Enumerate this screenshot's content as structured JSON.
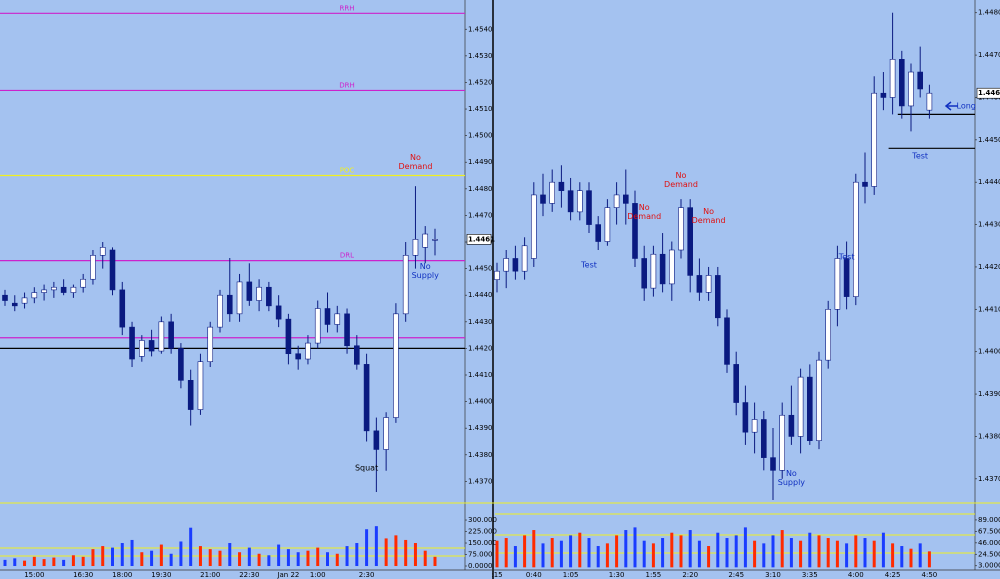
{
  "chart_data": [
    {
      "type": "candlestick",
      "categories": [
        null,
        null,
        null,
        "15:00",
        null,
        null,
        null,
        null,
        "16:30",
        null,
        null,
        null,
        "18:00",
        null,
        null,
        null,
        "19:30",
        null,
        null,
        null,
        null,
        "21:00",
        null,
        null,
        null,
        "22:30",
        null,
        null,
        null,
        "Jan 22",
        null,
        null,
        "1:00",
        null,
        null,
        null,
        null,
        "2:30",
        null,
        null,
        null,
        null,
        null,
        null,
        null
      ],
      "ohlc": [
        [
          1.444,
          1.4442,
          1.4436,
          1.4438
        ],
        [
          1.4437,
          1.444,
          1.4434,
          1.4436
        ],
        [
          1.4437,
          1.4441,
          1.4435,
          1.4439
        ],
        [
          1.4439,
          1.4443,
          1.4437,
          1.4441
        ],
        [
          1.4441,
          1.4444,
          1.4438,
          1.4442
        ],
        [
          1.4442,
          1.4445,
          1.4439,
          1.4443
        ],
        [
          1.4443,
          1.4446,
          1.444,
          1.4441
        ],
        [
          1.4441,
          1.4444,
          1.4439,
          1.4443
        ],
        [
          1.4443,
          1.4448,
          1.4441,
          1.4446
        ],
        [
          1.4446,
          1.4457,
          1.4444,
          1.4455
        ],
        [
          1.4455,
          1.446,
          1.445,
          1.4458
        ],
        [
          1.4457,
          1.4458,
          1.444,
          1.4442
        ],
        [
          1.4442,
          1.4445,
          1.4425,
          1.4428
        ],
        [
          1.4428,
          1.443,
          1.4413,
          1.4416
        ],
        [
          1.4417,
          1.4425,
          1.4415,
          1.4423
        ],
        [
          1.4423,
          1.4427,
          1.4417,
          1.4419
        ],
        [
          1.4419,
          1.4432,
          1.4418,
          1.443
        ],
        [
          1.443,
          1.4433,
          1.4418,
          1.442
        ],
        [
          1.442,
          1.4422,
          1.4405,
          1.4408
        ],
        [
          1.4408,
          1.4412,
          1.4391,
          1.4397
        ],
        [
          1.4397,
          1.4418,
          1.4395,
          1.4415
        ],
        [
          1.4415,
          1.443,
          1.4413,
          1.4428
        ],
        [
          1.4428,
          1.4442,
          1.4426,
          1.444
        ],
        [
          1.444,
          1.4454,
          1.443,
          1.4433
        ],
        [
          1.4433,
          1.4448,
          1.443,
          1.4445
        ],
        [
          1.4445,
          1.4452,
          1.4436,
          1.4438
        ],
        [
          1.4438,
          1.4446,
          1.4434,
          1.4443
        ],
        [
          1.4443,
          1.4445,
          1.4434,
          1.4436
        ],
        [
          1.4436,
          1.444,
          1.4428,
          1.4431
        ],
        [
          1.4431,
          1.4433,
          1.4414,
          1.4418
        ],
        [
          1.4418,
          1.4421,
          1.4412,
          1.4416
        ],
        [
          1.4416,
          1.4425,
          1.4414,
          1.4422
        ],
        [
          1.4422,
          1.4438,
          1.442,
          1.4435
        ],
        [
          1.4435,
          1.4441,
          1.4426,
          1.4429
        ],
        [
          1.4429,
          1.4436,
          1.4426,
          1.4433
        ],
        [
          1.4433,
          1.4435,
          1.4418,
          1.4421
        ],
        [
          1.4421,
          1.4425,
          1.4412,
          1.4414
        ],
        [
          1.4414,
          1.4418,
          1.4385,
          1.4389
        ],
        [
          1.4389,
          1.4394,
          1.4366,
          1.4382
        ],
        [
          1.4382,
          1.4396,
          1.4374,
          1.4394
        ],
        [
          1.4394,
          1.4437,
          1.4392,
          1.4433
        ],
        [
          1.4433,
          1.446,
          1.443,
          1.4455
        ],
        [
          1.4455,
          1.4481,
          1.445,
          1.4461
        ],
        [
          1.4458,
          1.4466,
          1.4452,
          1.4463
        ],
        [
          1.4461,
          1.4465,
          1.4455,
          1.4461
        ]
      ],
      "up_color": "#ffffff",
      "down_color": "#0a1a80",
      "ylim": [
        1.4363,
        1.4551
      ],
      "yticks": [
        {
          "value": 1.437,
          "label": "1.4370"
        },
        {
          "value": 1.438,
          "label": "1.4380"
        },
        {
          "value": 1.439,
          "label": "1.4390"
        },
        {
          "value": 1.44,
          "label": "1.4400"
        },
        {
          "value": 1.441,
          "label": "1.4410"
        },
        {
          "value": 1.442,
          "label": "1.4420"
        },
        {
          "value": 1.443,
          "label": "1.4430"
        },
        {
          "value": 1.444,
          "label": "1.4440"
        },
        {
          "value": 1.445,
          "label": "1.4450"
        },
        {
          "value": 1.446,
          "label": "1.4460"
        },
        {
          "value": 1.447,
          "label": "1.4470"
        },
        {
          "value": 1.448,
          "label": "1.4480"
        },
        {
          "value": 1.449,
          "label": "1.4490"
        },
        {
          "value": 1.45,
          "label": "1.4500"
        },
        {
          "value": 1.451,
          "label": "1.4510"
        },
        {
          "value": 1.452,
          "label": "1.4520"
        },
        {
          "value": 1.453,
          "label": "1.4530"
        },
        {
          "value": 1.454,
          "label": "1.4540"
        }
      ],
      "levels": [
        {
          "label": "RRH",
          "value": 1.4546,
          "color": "#cc22cc"
        },
        {
          "label": "DRH",
          "value": 1.4517,
          "color": "#cc22cc"
        },
        {
          "label": "POC",
          "value": 1.4485,
          "color": "#f0f020"
        },
        {
          "label": "DRL",
          "value": 1.4453,
          "color": "#cc22cc"
        },
        {
          "value": 1.4424,
          "color": "#cc22cc"
        },
        {
          "value": 1.442,
          "color": "#000000"
        }
      ],
      "last_price": {
        "value": 1.4461,
        "label": "1.4461"
      },
      "annotations": [
        {
          "text": "No\nDemand",
          "candle": 42,
          "price": 1.449,
          "color": "#e01010"
        },
        {
          "text": "No\nSupply",
          "candle": 43,
          "price": 1.4449,
          "color": "#1030c0"
        },
        {
          "text": "Squat",
          "candle": 37,
          "price": 1.4375,
          "color": "#000000"
        }
      ],
      "volume": {
        "values": [
          40,
          50,
          35,
          60,
          45,
          55,
          40,
          70,
          60,
          110,
          130,
          120,
          150,
          170,
          90,
          100,
          140,
          80,
          160,
          250,
          130,
          110,
          100,
          150,
          90,
          120,
          80,
          70,
          140,
          110,
          90,
          100,
          120,
          90,
          80,
          130,
          150,
          240,
          260,
          180,
          200,
          170,
          150,
          100,
          60
        ],
        "up_color": "#ff2a00",
        "down_color": "#1a3cff",
        "ylim": [
          -26,
          398
        ],
        "yticks": [
          {
            "value": 0,
            "label": "0.0000"
          },
          {
            "value": 75,
            "label": "75.000"
          },
          {
            "value": 150,
            "label": "150.000"
          },
          {
            "value": 225,
            "label": "225.000"
          },
          {
            "value": 300,
            "label": "300.000"
          }
        ]
      }
    },
    {
      "type": "candlestick",
      "categories": [
        ":15",
        null,
        null,
        null,
        "0:40",
        null,
        null,
        null,
        "1:05",
        null,
        null,
        null,
        null,
        "1:30",
        null,
        null,
        null,
        "1:55",
        null,
        null,
        null,
        "2:20",
        null,
        null,
        null,
        null,
        "2:45",
        null,
        null,
        null,
        "3:10",
        null,
        null,
        null,
        "3:35",
        null,
        null,
        null,
        null,
        "4:00",
        null,
        null,
        null,
        "4:25",
        null,
        null,
        null,
        "4:50"
      ],
      "ohlc": [
        [
          1.4417,
          1.4421,
          1.4414,
          1.4419
        ],
        [
          1.4419,
          1.4424,
          1.4415,
          1.4422
        ],
        [
          1.4422,
          1.4425,
          1.4417,
          1.4419
        ],
        [
          1.4419,
          1.4427,
          1.4417,
          1.4425
        ],
        [
          1.4422,
          1.444,
          1.442,
          1.4437
        ],
        [
          1.4437,
          1.4442,
          1.4432,
          1.4435
        ],
        [
          1.4435,
          1.4443,
          1.4433,
          1.444
        ],
        [
          1.444,
          1.4444,
          1.4434,
          1.4438
        ],
        [
          1.4438,
          1.4441,
          1.4431,
          1.4433
        ],
        [
          1.4433,
          1.444,
          1.4431,
          1.4438
        ],
        [
          1.4438,
          1.444,
          1.4428,
          1.443
        ],
        [
          1.443,
          1.4432,
          1.4424,
          1.4426
        ],
        [
          1.4426,
          1.4436,
          1.4425,
          1.4434
        ],
        [
          1.4434,
          1.444,
          1.443,
          1.4437
        ],
        [
          1.4437,
          1.4443,
          1.443,
          1.4435
        ],
        [
          1.4435,
          1.4438,
          1.442,
          1.4422
        ],
        [
          1.4422,
          1.4425,
          1.4412,
          1.4415
        ],
        [
          1.4415,
          1.4425,
          1.4413,
          1.4423
        ],
        [
          1.4423,
          1.4428,
          1.4414,
          1.4416
        ],
        [
          1.4416,
          1.4426,
          1.4412,
          1.4424
        ],
        [
          1.4424,
          1.4436,
          1.4422,
          1.4434
        ],
        [
          1.4434,
          1.4436,
          1.4414,
          1.4418
        ],
        [
          1.4418,
          1.4422,
          1.4412,
          1.4414
        ],
        [
          1.4414,
          1.442,
          1.4412,
          1.4418
        ],
        [
          1.4418,
          1.442,
          1.4406,
          1.4408
        ],
        [
          1.4408,
          1.441,
          1.4395,
          1.4397
        ],
        [
          1.4397,
          1.44,
          1.4385,
          1.4388
        ],
        [
          1.4388,
          1.4392,
          1.4378,
          1.4381
        ],
        [
          1.4381,
          1.4388,
          1.4376,
          1.4384
        ],
        [
          1.4384,
          1.4386,
          1.4372,
          1.4375
        ],
        [
          1.4375,
          1.4382,
          1.4365,
          1.4372
        ],
        [
          1.4372,
          1.4388,
          1.437,
          1.4385
        ],
        [
          1.4385,
          1.4392,
          1.4378,
          1.438
        ],
        [
          1.438,
          1.4396,
          1.4376,
          1.4394
        ],
        [
          1.4394,
          1.4397,
          1.4378,
          1.4379
        ],
        [
          1.4379,
          1.44,
          1.4377,
          1.4398
        ],
        [
          1.4398,
          1.4412,
          1.4396,
          1.441
        ],
        [
          1.441,
          1.4425,
          1.4406,
          1.4422
        ],
        [
          1.4422,
          1.4426,
          1.441,
          1.4413
        ],
        [
          1.4413,
          1.4442,
          1.4411,
          1.444
        ],
        [
          1.444,
          1.4447,
          1.4435,
          1.4439
        ],
        [
          1.4439,
          1.4465,
          1.4437,
          1.4461
        ],
        [
          1.4461,
          1.4466,
          1.4457,
          1.446
        ],
        [
          1.446,
          1.448,
          1.4456,
          1.4469
        ],
        [
          1.4469,
          1.4471,
          1.4455,
          1.4458
        ],
        [
          1.4458,
          1.4468,
          1.4452,
          1.4466
        ],
        [
          1.4466,
          1.4472,
          1.446,
          1.4462
        ],
        [
          1.4457,
          1.4463,
          1.4455,
          1.4461
        ]
      ],
      "up_color": "#ffffff",
      "down_color": "#0a1a80",
      "ylim": [
        1.4365,
        1.4483
      ],
      "yticks": [
        {
          "value": 1.437,
          "label": "1.4370"
        },
        {
          "value": 1.438,
          "label": "1.4380"
        },
        {
          "value": 1.439,
          "label": "1.4390"
        },
        {
          "value": 1.44,
          "label": "1.4400"
        },
        {
          "value": 1.441,
          "label": "1.4410"
        },
        {
          "value": 1.442,
          "label": "1.4420"
        },
        {
          "value": 1.443,
          "label": "1.4430"
        },
        {
          "value": 1.444,
          "label": "1.4440"
        },
        {
          "value": 1.445,
          "label": "1.4450"
        },
        {
          "value": 1.446,
          "label": "1.4460"
        },
        {
          "value": 1.447,
          "label": "1.4470"
        },
        {
          "value": 1.448,
          "label": "1.4480"
        }
      ],
      "levels": [
        {
          "value": 1.4456,
          "color": "#000000",
          "from": 44
        },
        {
          "value": 1.4448,
          "color": "#000000",
          "from": 43
        }
      ],
      "last_price": {
        "value": 1.4461,
        "label": "1.4461"
      },
      "annotations": [
        {
          "text": "Test",
          "candle": 10,
          "price": 1.44205,
          "color": "#1030c0"
        },
        {
          "text": "No\nDemand",
          "candle": 16,
          "price": 1.4433,
          "color": "#e01010"
        },
        {
          "text": "No\nDemand",
          "candle": 20,
          "price": 1.44405,
          "color": "#e01010"
        },
        {
          "text": "No\nDemand",
          "candle": 23,
          "price": 1.4432,
          "color": "#e01010"
        },
        {
          "text": "No\nSupply",
          "candle": 32,
          "price": 1.43703,
          "color": "#1030c0"
        },
        {
          "text": "Test",
          "candle": 38,
          "price": 1.44224,
          "color": "#1030c0"
        },
        {
          "text": "Test",
          "candle": 46,
          "price": 1.44461,
          "color": "#1030c0"
        },
        {
          "text": "Long",
          "candle": 51,
          "price": 1.44579,
          "color": "#1030c0"
        }
      ],
      "volume": {
        "values": [
          50,
          55,
          40,
          60,
          70,
          45,
          55,
          50,
          60,
          65,
          55,
          40,
          45,
          60,
          70,
          75,
          50,
          45,
          55,
          65,
          60,
          70,
          50,
          40,
          65,
          55,
          60,
          75,
          50,
          45,
          60,
          70,
          55,
          50,
          65,
          60,
          55,
          50,
          45,
          60,
          55,
          50,
          65,
          45,
          40,
          35,
          45,
          30
        ],
        "up_color": "#ff2a00",
        "down_color": "#1a3cff",
        "ylim": [
          -5,
          117
        ],
        "yticks": [
          {
            "value": 3,
            "label": "3.0000"
          },
          {
            "value": 24.5,
            "label": "24.500"
          },
          {
            "value": 46,
            "label": "46.000"
          },
          {
            "value": 67.5,
            "label": "67.500"
          },
          {
            "value": 89,
            "label": "89.000"
          }
        ]
      }
    }
  ]
}
